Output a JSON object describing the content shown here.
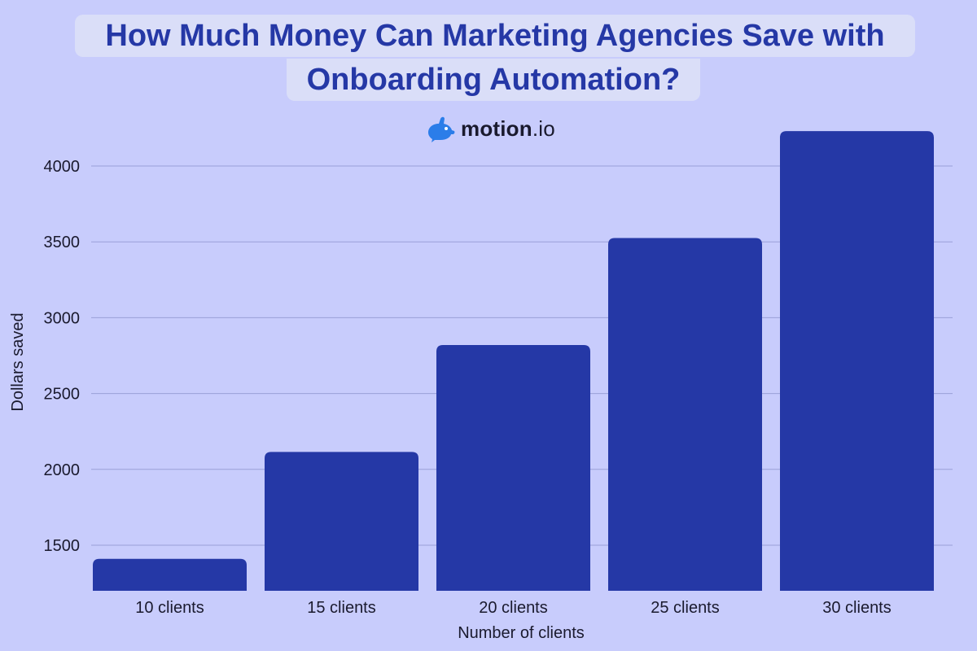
{
  "title_lines": [
    "How Much Money Can Marketing Agencies Save with",
    "Onboarding Automation?"
  ],
  "brand": {
    "name": "motion",
    "suffix": ".io",
    "logo_icon": "rabbit-logo-icon"
  },
  "colors": {
    "background": "#c8ccfc",
    "bar": "#2538a6",
    "title_text": "#2538a6",
    "grid": "#9aa0d8"
  },
  "chart_data": {
    "type": "bar",
    "categories": [
      "10 clients",
      "15 clients",
      "20 clients",
      "25 clients",
      "30 clients"
    ],
    "values": [
      1410,
      2115,
      2820,
      3525,
      4230
    ],
    "xlabel": "Number of clients",
    "ylabel": "Dollars saved",
    "ylim": [
      1200,
      4300
    ],
    "yticks": [
      1500,
      2000,
      2500,
      3000,
      3500,
      4000
    ],
    "grid": true
  }
}
